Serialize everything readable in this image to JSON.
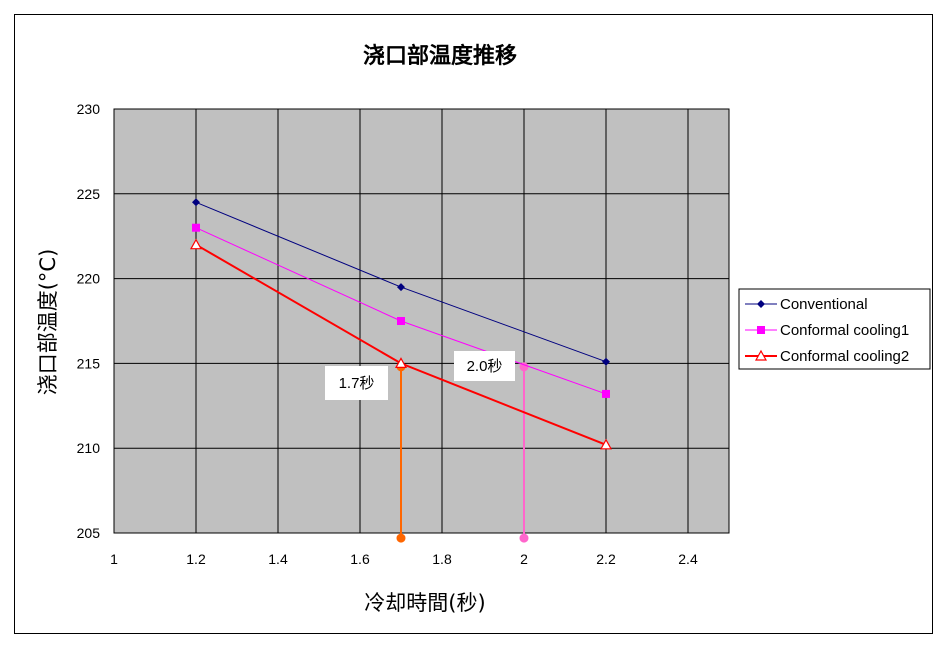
{
  "chart_data": {
    "type": "line",
    "title": "浇口部温度推移",
    "xlabel": "冷却時間(秒)",
    "ylabel": "浇口部温度(°C)",
    "xlim": [
      1,
      2.5
    ],
    "ylim": [
      205,
      230
    ],
    "x_ticks": [
      "1",
      "1.2",
      "1.4",
      "1.6",
      "1.8",
      "2",
      "2.2",
      "2.4"
    ],
    "y_ticks": [
      "205",
      "210",
      "215",
      "220",
      "225",
      "230"
    ],
    "grid": true,
    "legend_position": "right",
    "series": [
      {
        "name": "Conventional",
        "color": "#00007f",
        "marker": "diamond",
        "x": [
          1.2,
          1.7,
          2.2
        ],
        "values": [
          224.5,
          219.5,
          215.1
        ]
      },
      {
        "name": "Conformal cooling1",
        "color": "#ff00ff",
        "marker": "square",
        "x": [
          1.2,
          1.7,
          2.2
        ],
        "values": [
          223.0,
          217.5,
          213.2
        ]
      },
      {
        "name": "Conformal cooling2",
        "color": "#ff0000",
        "marker": "open-triangle",
        "x": [
          1.2,
          1.7,
          2.2
        ],
        "values": [
          222.0,
          215.0,
          210.2
        ]
      }
    ],
    "annotations": [
      {
        "label": "1.7秒",
        "x": 1.7,
        "y_top": 214.8,
        "y_bottom": 204.7,
        "color": "#ff6600"
      },
      {
        "label": "2.0秒",
        "x": 2.0,
        "y_top": 214.8,
        "y_bottom": 204.7,
        "color": "#ff66cc"
      }
    ],
    "plot_bg": "#c0c0c0"
  }
}
